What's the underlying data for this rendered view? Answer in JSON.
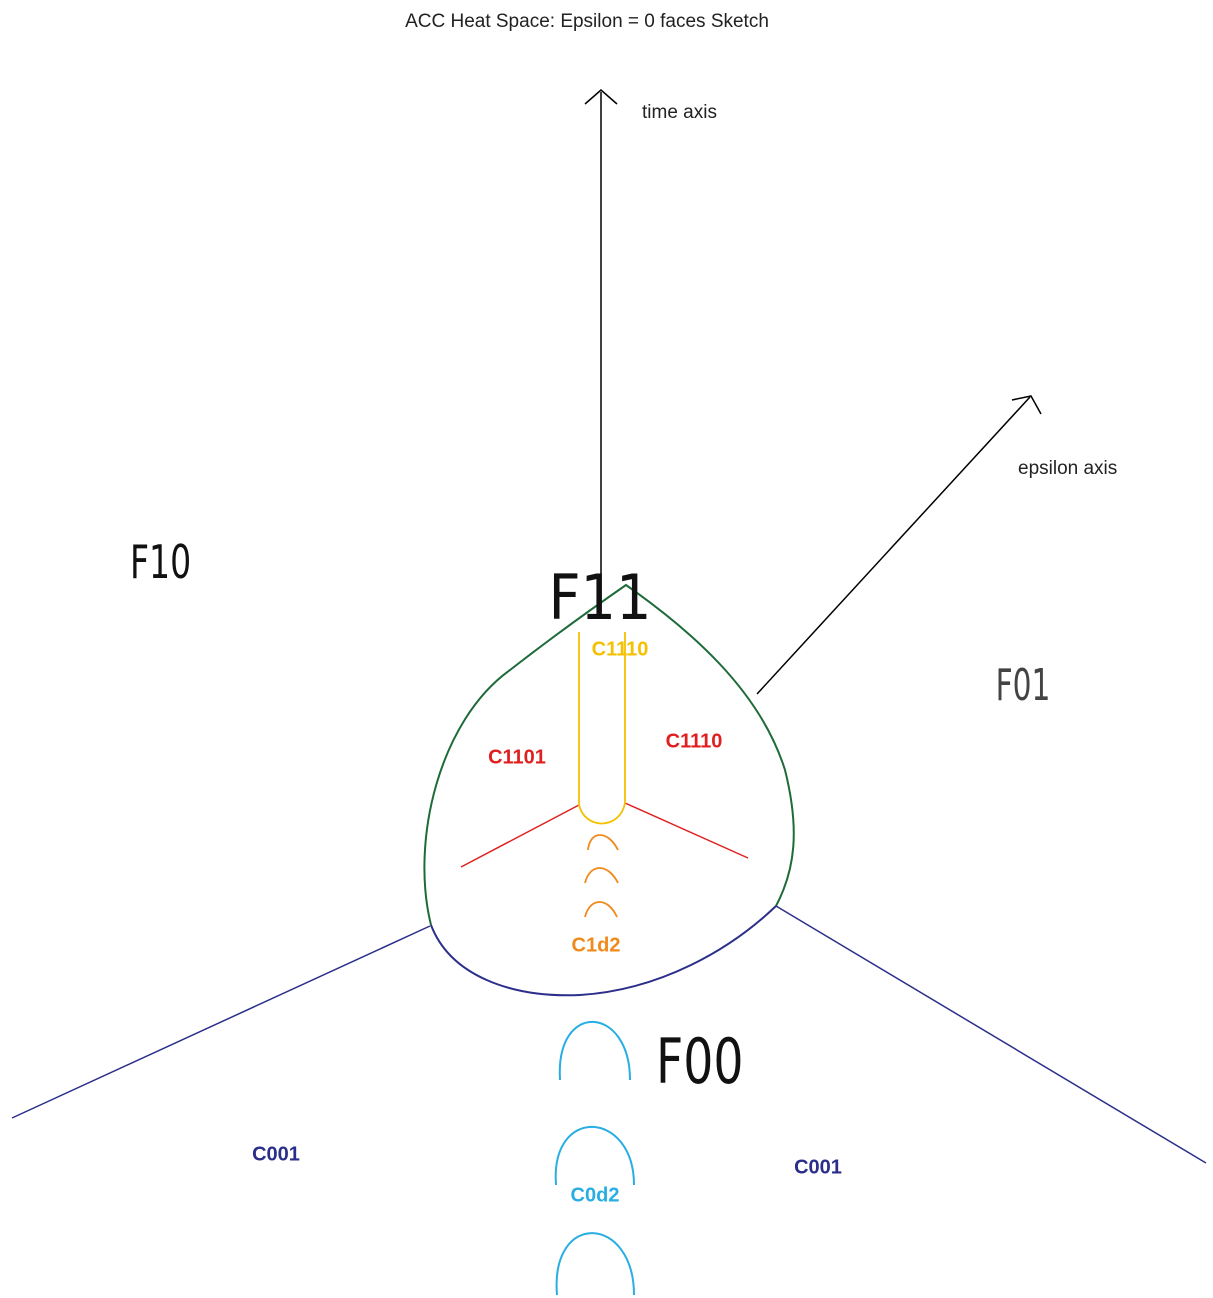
{
  "title": "ACC Heat Space:  Epsilon = 0 faces Sketch",
  "axes": {
    "time": "time axis",
    "epsilon": "epsilon axis"
  },
  "faces": {
    "f10": "F10",
    "f11": "F11",
    "f01": "F01",
    "f00": "F00"
  },
  "cells": {
    "c1110_top": "C1110",
    "c1101": "C1101",
    "c1110_right": "C1110",
    "c1d2": "C1d2",
    "c001_left": "C001",
    "c001_right": "C001",
    "c0d2": "C0d2"
  }
}
